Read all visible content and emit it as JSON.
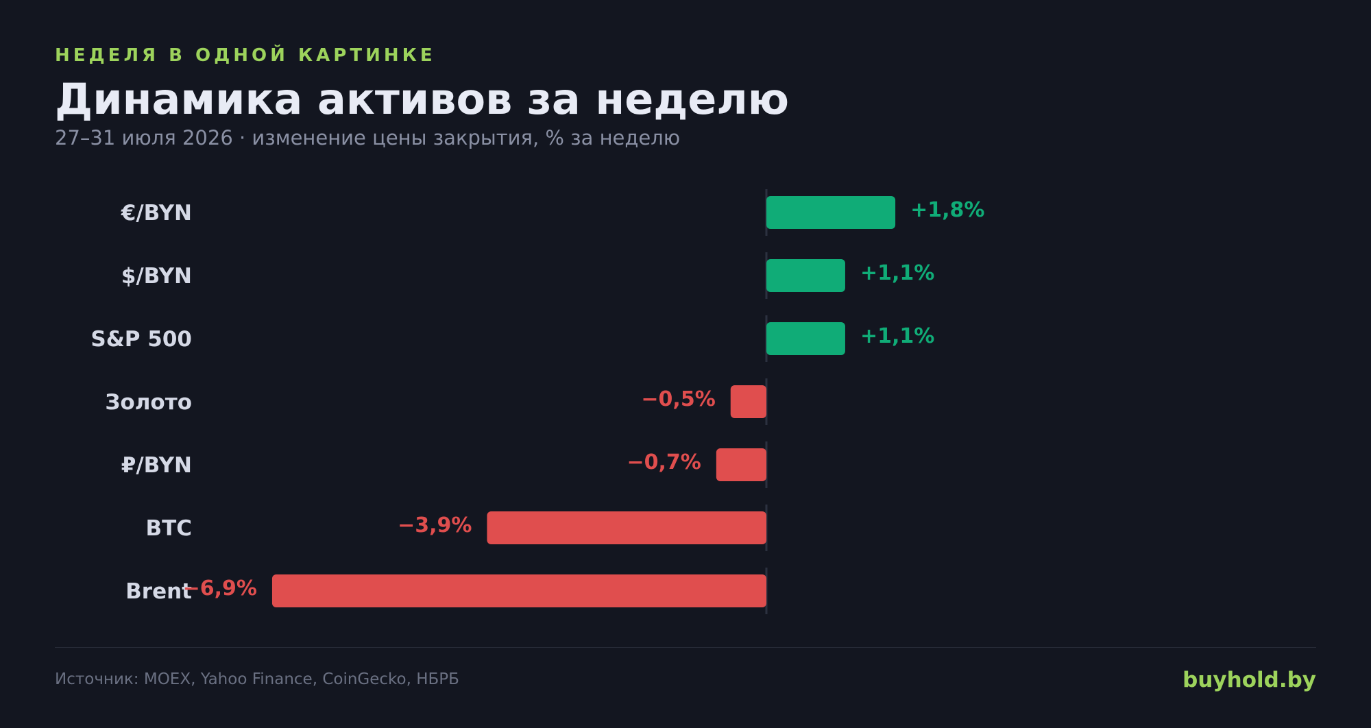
{
  "header": {
    "kicker": "НЕДЕЛЯ В ОДНОЙ КАРТИНКЕ",
    "title": "Динамика активов за неделю",
    "subtitle": "27–31 июля 2026 · изменение цены закрытия, % за неделю"
  },
  "chart_data": {
    "type": "bar",
    "orientation": "horizontal",
    "categories": [
      "€/BYN",
      "$/BYN",
      "S&P 500",
      "Золото",
      "₽/BYN",
      "BTC",
      "Brent"
    ],
    "values": [
      1.8,
      1.1,
      1.1,
      -0.5,
      -0.7,
      -3.9,
      -6.9
    ],
    "value_labels": [
      "+1,8%",
      "+1,1%",
      "+1,1%",
      "−0,5%",
      "−0,7%",
      "−3,9%",
      "−6,9%"
    ],
    "unit": "%",
    "positive_color": "#10ac77",
    "negative_color": "#e04e4e",
    "grid": false,
    "legend": false
  },
  "footer": {
    "source": "Источник: MOEX, Yahoo Finance, CoinGecko, НБРБ",
    "brand": "buyhold.by"
  }
}
